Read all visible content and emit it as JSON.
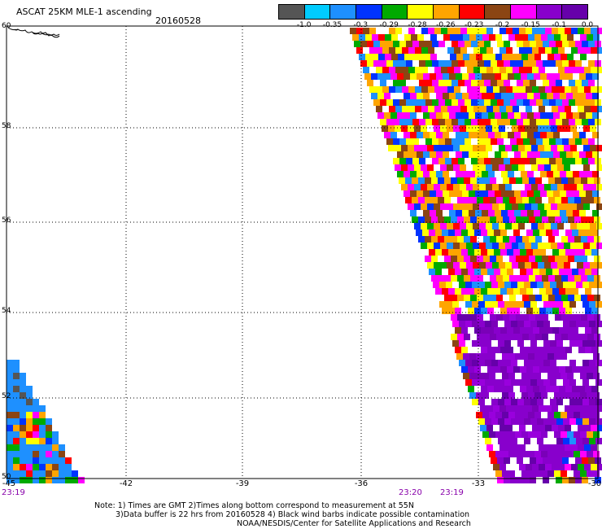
{
  "header": {
    "title": "ASCAT 25KM MLE-1 ascending",
    "date": "20160528"
  },
  "colorbar": {
    "labels": [
      "-1.0",
      "-0.35",
      "-0.3",
      "-0.29",
      "-0.28",
      "-0.26",
      "-0.23",
      "-0.2",
      "-0.15",
      "-0.1",
      "0.0"
    ],
    "colors": [
      "#555555",
      "#00ccff",
      "#1e90ff",
      "#0033ff",
      "#00aa00",
      "#ffff00",
      "#ffa500",
      "#ff0000",
      "#8b4513",
      "#ff00ff",
      "#8800cc",
      "#6600aa"
    ]
  },
  "axes": {
    "x_ticks": [
      "-45",
      "-42",
      "-39",
      "-36",
      "-33",
      "-30"
    ],
    "y_ticks": [
      "60",
      "58",
      "56",
      "54",
      "52",
      "50"
    ]
  },
  "times": {
    "left": "23:19",
    "mid": "23:20",
    "right": "23:19"
  },
  "notes": {
    "line1": "Note: 1) Times are GMT 2)Times along bottom correspond to measurement at 55N",
    "line2": "3)Data buffer is 22 hrs from 20160528 4) Black wind barbs indicate possible contamination",
    "line3": "NOAA/NESDIS/Center for Satellite Applications and Research"
  }
}
